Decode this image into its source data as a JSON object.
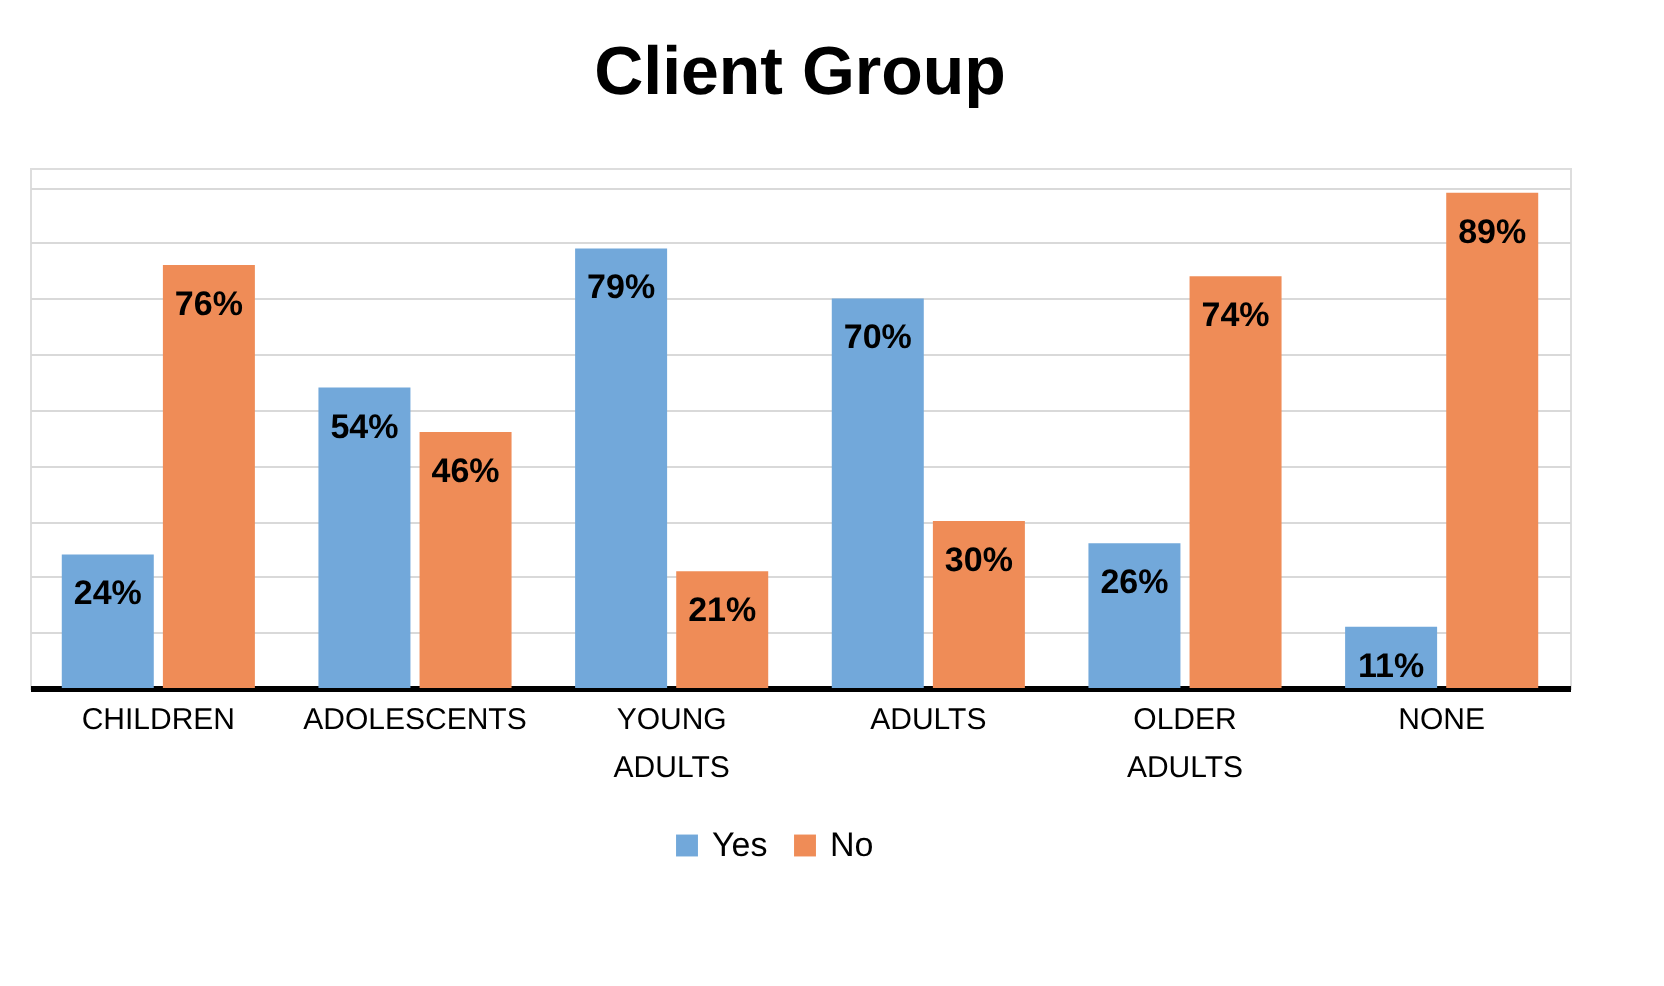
{
  "chart_data": {
    "type": "bar",
    "title": "Client Group",
    "categories": [
      "CHILDREN",
      "ADOLESCENTS",
      "YOUNG ADULTS",
      "ADULTS",
      "OLDER ADULTS",
      "NONE"
    ],
    "series": [
      {
        "name": "Yes",
        "color": "#72a8da",
        "values": [
          24,
          54,
          79,
          70,
          26,
          11
        ],
        "value_labels": [
          "24%",
          "54%",
          "79%",
          "70%",
          "26%",
          "11%"
        ]
      },
      {
        "name": "No",
        "color": "#ef8c57",
        "values": [
          76,
          46,
          21,
          30,
          74,
          89
        ],
        "value_labels": [
          "76%",
          "46%",
          "21%",
          "30%",
          "74%",
          "89%"
        ]
      }
    ],
    "grid": "y",
    "legend": "bottom",
    "tick_labels": "x"
  }
}
